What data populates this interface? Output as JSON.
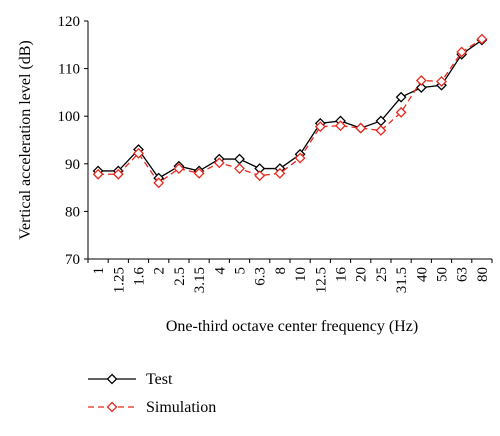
{
  "chart_data": {
    "type": "line",
    "title": "",
    "xlabel": "One-third octave center frequency (Hz)",
    "ylabel": "Vertical acceleration level (dB)",
    "ylim": [
      70,
      120
    ],
    "yticks": [
      70,
      80,
      90,
      100,
      110,
      120
    ],
    "grid": false,
    "legend_position": "bottom-left",
    "categories": [
      "1",
      "1.25",
      "1.6",
      "2",
      "2.5",
      "3.15",
      "4",
      "5",
      "6.3",
      "8",
      "10",
      "12.5",
      "16",
      "20",
      "25",
      "31.5",
      "40",
      "50",
      "63",
      "80"
    ],
    "series": [
      {
        "name": "Test",
        "color": "#000000",
        "line_style": "solid",
        "marker": "diamond",
        "values": [
          88.5,
          88.5,
          93,
          87,
          89.5,
          88.5,
          91,
          91,
          89,
          89,
          92,
          98.5,
          99,
          97.5,
          99,
          104,
          106,
          106.5,
          113,
          116
        ]
      },
      {
        "name": "Simulation",
        "color": "#e8291c",
        "line_style": "dashed",
        "marker": "diamond",
        "values": [
          87.8,
          87.8,
          92.2,
          86,
          89,
          88,
          90.2,
          89,
          87.5,
          88,
          91.2,
          97.8,
          98,
          97.5,
          97,
          100.8,
          107.5,
          107.3,
          113.5,
          116.2
        ]
      }
    ]
  }
}
